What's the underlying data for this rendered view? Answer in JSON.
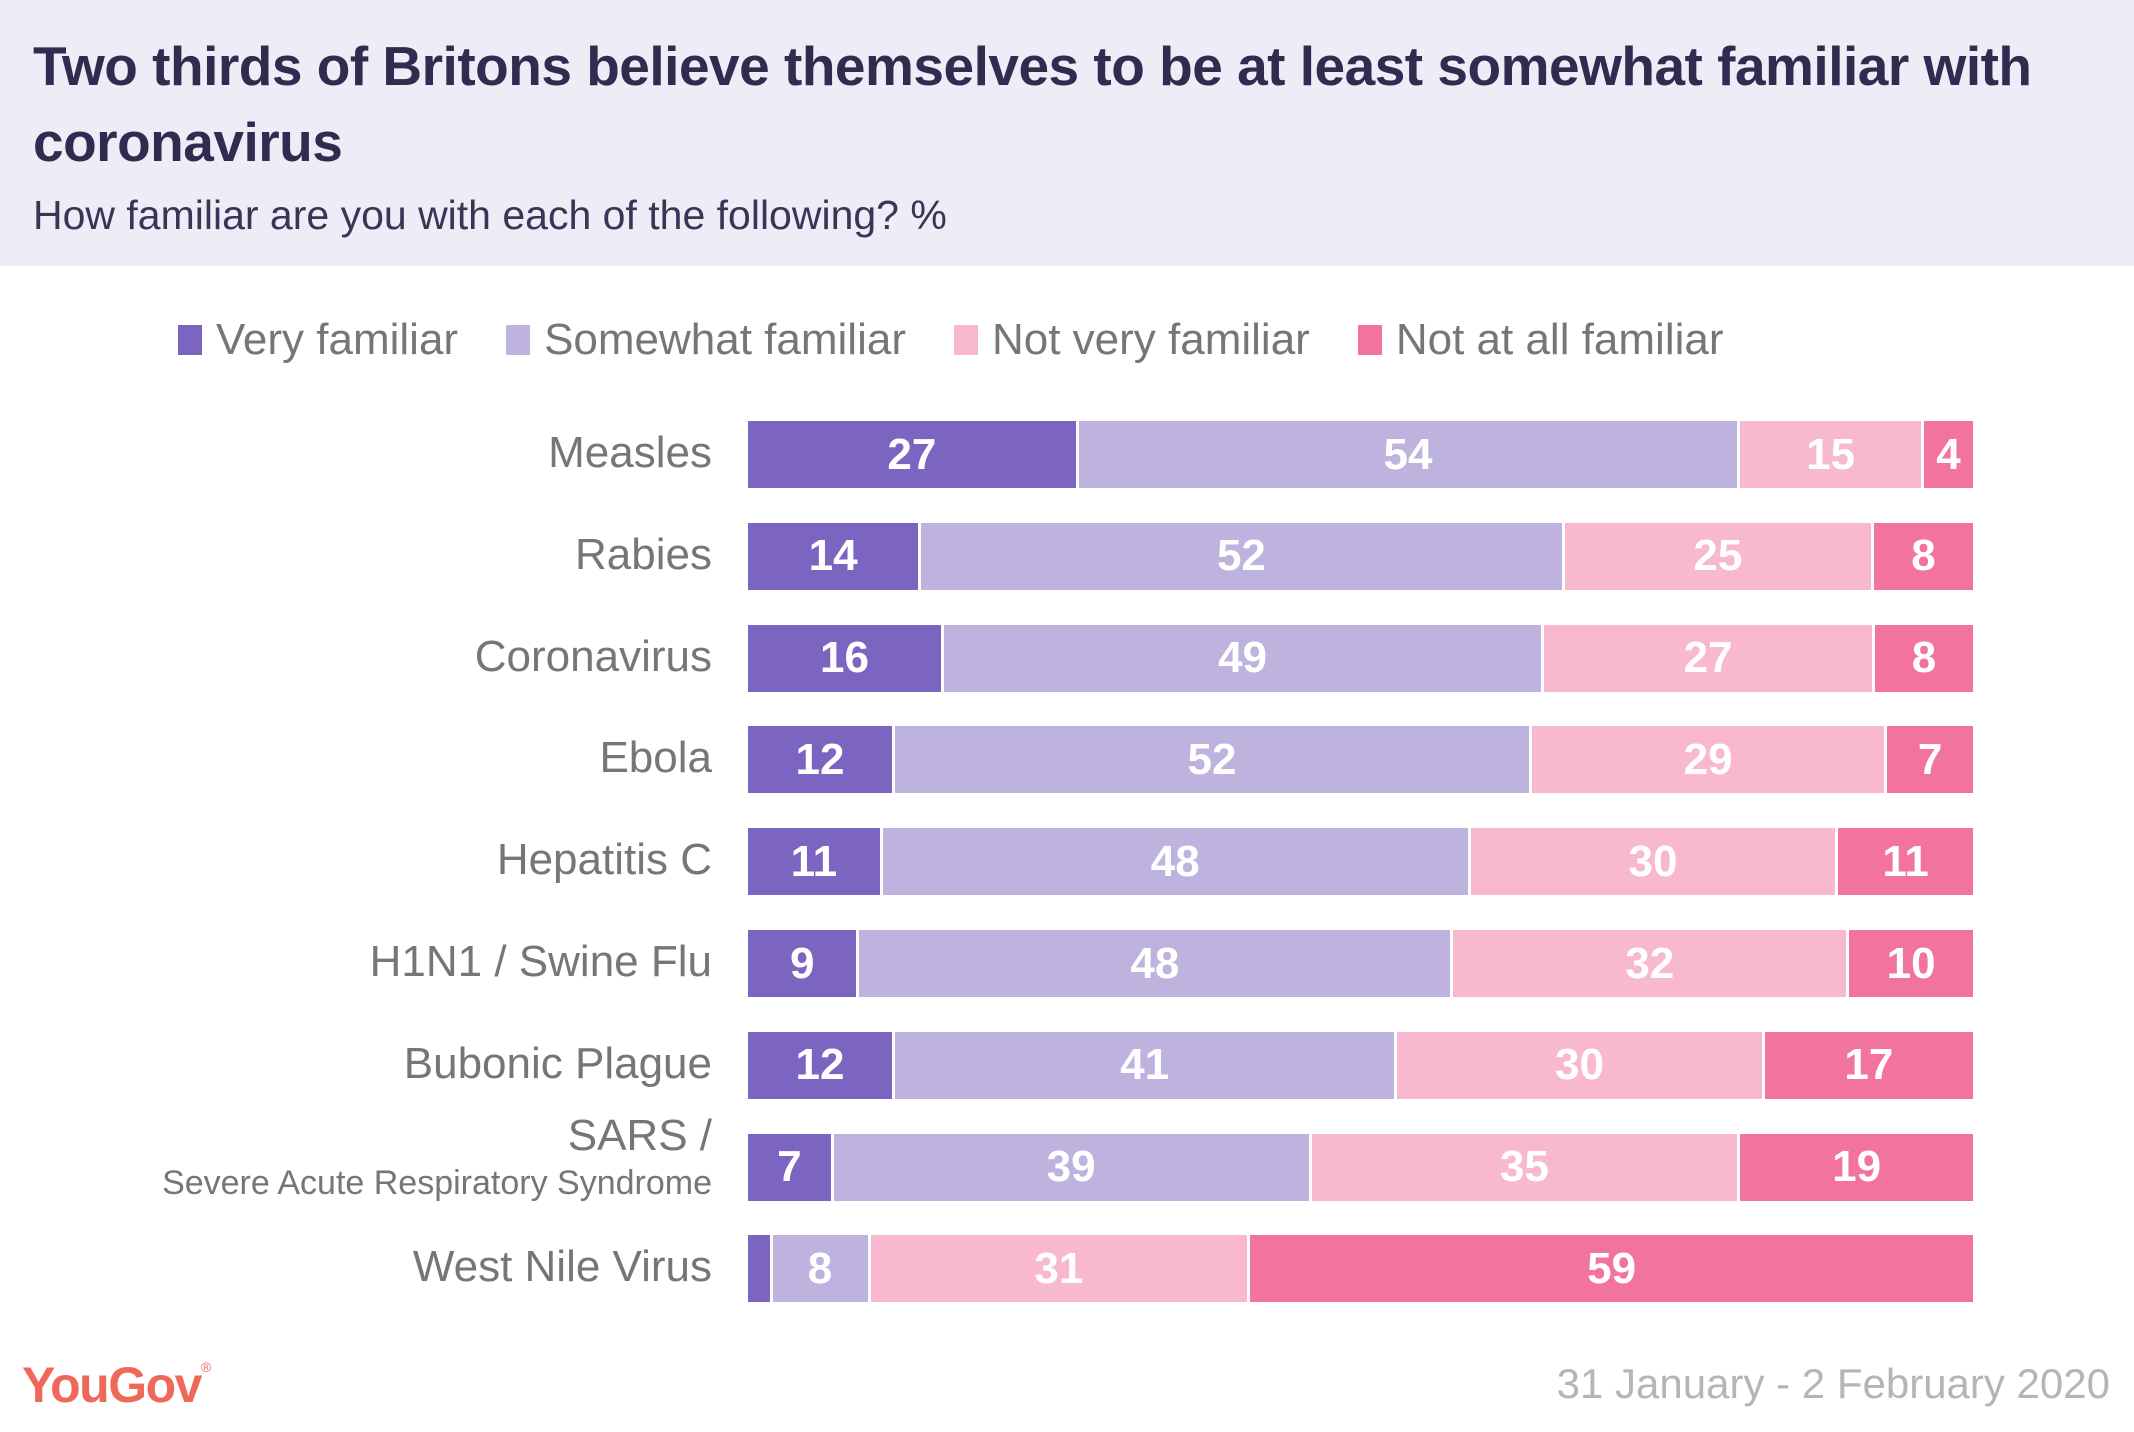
{
  "header": {
    "title": "Two thirds of Britons believe themselves to be at least somewhat familiar with coronavirus",
    "subtitle": "How familiar are you with each of the following? %"
  },
  "footer": {
    "logo": "YouGov",
    "logo_mark": "®",
    "date": "31 January - 2 February 2020"
  },
  "chart_data": {
    "type": "bar",
    "orientation": "horizontal",
    "stacked": true,
    "title": "Two thirds of Britons believe themselves to be at least somewhat familiar with coronavirus",
    "subtitle": "How familiar are you with each of the following? %",
    "xlabel": "",
    "ylabel": "",
    "xlim": [
      0,
      100
    ],
    "grid": false,
    "legend_position": "top",
    "categories": [
      {
        "label": "Measles",
        "sublabel": null
      },
      {
        "label": "Rabies",
        "sublabel": null
      },
      {
        "label": "Coronavirus",
        "sublabel": null
      },
      {
        "label": "Ebola",
        "sublabel": null
      },
      {
        "label": "Hepatitis C",
        "sublabel": null
      },
      {
        "label": "H1N1 / Swine Flu",
        "sublabel": null
      },
      {
        "label": "Bubonic Plague",
        "sublabel": null
      },
      {
        "label": "SARS /",
        "sublabel": "Severe Acute Respiratory Syndrome"
      },
      {
        "label": "West Nile Virus",
        "sublabel": null
      }
    ],
    "series": [
      {
        "name": "Very familiar",
        "color": "#7c65c1",
        "values": [
          27,
          14,
          16,
          12,
          11,
          9,
          12,
          7,
          2
        ],
        "labels": [
          "27",
          "14",
          "16",
          "12",
          "11",
          "9",
          "12",
          "7",
          ""
        ]
      },
      {
        "name": "Somewhat familiar",
        "color": "#beb2de",
        "values": [
          54,
          52,
          49,
          52,
          48,
          48,
          41,
          39,
          8
        ],
        "labels": [
          "54",
          "52",
          "49",
          "52",
          "48",
          "48",
          "41",
          "39",
          "8"
        ]
      },
      {
        "name": "Not very familiar",
        "color": "#f8b8d0",
        "values": [
          15,
          25,
          27,
          29,
          30,
          32,
          30,
          35,
          31
        ],
        "labels": [
          "15",
          "25",
          "27",
          "29",
          "30",
          "32",
          "30",
          "35",
          "31"
        ]
      },
      {
        "name": "Not at all familiar",
        "color": "#f272a0",
        "values": [
          4,
          8,
          8,
          7,
          11,
          10,
          17,
          19,
          59
        ],
        "labels": [
          "4",
          "8",
          "8",
          "7",
          "11",
          "10",
          "17",
          "19",
          "59"
        ]
      }
    ]
  }
}
